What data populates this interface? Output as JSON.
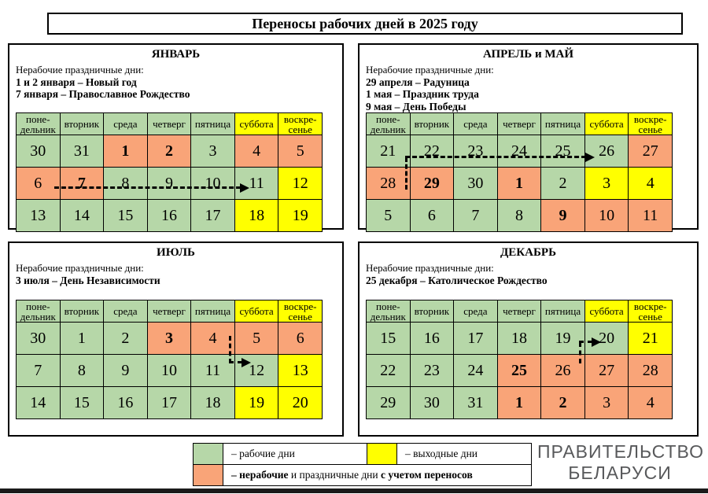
{
  "page_title": "Переносы рабочих дней в 2025 году",
  "colors": {
    "work": "#b6d7a8",
    "weekend": "#ffff00",
    "off": "#f9a478"
  },
  "weekdays": [
    {
      "label": "поне-\nдельник",
      "type": "work"
    },
    {
      "label": "вторник",
      "type": "work"
    },
    {
      "label": "среда",
      "type": "work"
    },
    {
      "label": "четверг",
      "type": "work"
    },
    {
      "label": "пятница",
      "type": "work"
    },
    {
      "label": "суббота",
      "type": "weekend"
    },
    {
      "label": "воскре-\nсенье",
      "type": "weekend"
    }
  ],
  "panels": [
    {
      "id": "january",
      "title": "ЯНВАРЬ",
      "holidays_label": "Нерабочие праздничные дни:",
      "holidays": [
        "1 и 2 января – Новый год",
        "7 января – Православное Рождество"
      ],
      "transfer": "6 → 11",
      "rows": [
        [
          {
            "d": "30",
            "t": "work"
          },
          {
            "d": "31",
            "t": "work"
          },
          {
            "d": "1",
            "t": "off",
            "b": true
          },
          {
            "d": "2",
            "t": "off",
            "b": true
          },
          {
            "d": "3",
            "t": "work"
          },
          {
            "d": "4",
            "t": "off"
          },
          {
            "d": "5",
            "t": "off"
          }
        ],
        [
          {
            "d": "6",
            "t": "off"
          },
          {
            "d": "7",
            "t": "off",
            "b": true
          },
          {
            "d": "8",
            "t": "work"
          },
          {
            "d": "9",
            "t": "work"
          },
          {
            "d": "10",
            "t": "work"
          },
          {
            "d": "11",
            "t": "work"
          },
          {
            "d": "12",
            "t": "weekend"
          }
        ],
        [
          {
            "d": "13",
            "t": "work"
          },
          {
            "d": "14",
            "t": "work"
          },
          {
            "d": "15",
            "t": "work"
          },
          {
            "d": "16",
            "t": "work"
          },
          {
            "d": "17",
            "t": "work"
          },
          {
            "d": "18",
            "t": "weekend"
          },
          {
            "d": "19",
            "t": "weekend"
          }
        ]
      ]
    },
    {
      "id": "april-may",
      "title": "АПРЕЛЬ и МАЙ",
      "holidays_label": "Нерабочие праздничные дни:",
      "holidays": [
        "29 апреля – Радуница",
        "1 мая – Праздник труда",
        "9 мая – День Победы"
      ],
      "transfer": "28 → 26",
      "rows": [
        [
          {
            "d": "21",
            "t": "work"
          },
          {
            "d": "22",
            "t": "work"
          },
          {
            "d": "23",
            "t": "work"
          },
          {
            "d": "24",
            "t": "work"
          },
          {
            "d": "25",
            "t": "work"
          },
          {
            "d": "26",
            "t": "work"
          },
          {
            "d": "27",
            "t": "off"
          }
        ],
        [
          {
            "d": "28",
            "t": "off"
          },
          {
            "d": "29",
            "t": "off",
            "b": true
          },
          {
            "d": "30",
            "t": "work"
          },
          {
            "d": "1",
            "t": "off",
            "b": true
          },
          {
            "d": "2",
            "t": "work"
          },
          {
            "d": "3",
            "t": "weekend"
          },
          {
            "d": "4",
            "t": "weekend"
          }
        ],
        [
          {
            "d": "5",
            "t": "work"
          },
          {
            "d": "6",
            "t": "work"
          },
          {
            "d": "7",
            "t": "work"
          },
          {
            "d": "8",
            "t": "work"
          },
          {
            "d": "9",
            "t": "off",
            "b": true
          },
          {
            "d": "10",
            "t": "off"
          },
          {
            "d": "11",
            "t": "off"
          }
        ]
      ]
    },
    {
      "id": "july",
      "title": "ИЮЛЬ",
      "holidays_label": "Нерабочие праздничные дни:",
      "holidays": [
        "3 июля – День Независимости"
      ],
      "transfer": "4 → 12",
      "rows": [
        [
          {
            "d": "30",
            "t": "work"
          },
          {
            "d": "1",
            "t": "work"
          },
          {
            "d": "2",
            "t": "work"
          },
          {
            "d": "3",
            "t": "off",
            "b": true
          },
          {
            "d": "4",
            "t": "off"
          },
          {
            "d": "5",
            "t": "off"
          },
          {
            "d": "6",
            "t": "off"
          }
        ],
        [
          {
            "d": "7",
            "t": "work"
          },
          {
            "d": "8",
            "t": "work"
          },
          {
            "d": "9",
            "t": "work"
          },
          {
            "d": "10",
            "t": "work"
          },
          {
            "d": "11",
            "t": "work"
          },
          {
            "d": "12",
            "t": "work"
          },
          {
            "d": "13",
            "t": "weekend"
          }
        ],
        [
          {
            "d": "14",
            "t": "work"
          },
          {
            "d": "15",
            "t": "work"
          },
          {
            "d": "16",
            "t": "work"
          },
          {
            "d": "17",
            "t": "work"
          },
          {
            "d": "18",
            "t": "work"
          },
          {
            "d": "19",
            "t": "weekend"
          },
          {
            "d": "20",
            "t": "weekend"
          }
        ]
      ]
    },
    {
      "id": "december",
      "title": "ДЕКАБРЬ",
      "holidays_label": "Нерабочие праздничные дни:",
      "holidays": [
        "25 декабря – Католическое Рождество"
      ],
      "transfer": "26 → 20",
      "rows": [
        [
          {
            "d": "15",
            "t": "work"
          },
          {
            "d": "16",
            "t": "work"
          },
          {
            "d": "17",
            "t": "work"
          },
          {
            "d": "18",
            "t": "work"
          },
          {
            "d": "19",
            "t": "work"
          },
          {
            "d": "20",
            "t": "work"
          },
          {
            "d": "21",
            "t": "weekend"
          }
        ],
        [
          {
            "d": "22",
            "t": "work"
          },
          {
            "d": "23",
            "t": "work"
          },
          {
            "d": "24",
            "t": "work"
          },
          {
            "d": "25",
            "t": "off",
            "b": true
          },
          {
            "d": "26",
            "t": "off"
          },
          {
            "d": "27",
            "t": "off"
          },
          {
            "d": "28",
            "t": "off"
          }
        ],
        [
          {
            "d": "29",
            "t": "work"
          },
          {
            "d": "30",
            "t": "work"
          },
          {
            "d": "31",
            "t": "work"
          },
          {
            "d": "1",
            "t": "off",
            "b": true
          },
          {
            "d": "2",
            "t": "off",
            "b": true
          },
          {
            "d": "3",
            "t": "off"
          },
          {
            "d": "4",
            "t": "off"
          }
        ]
      ]
    }
  ],
  "legend": {
    "working_label": "– рабочие дни",
    "weekend_label": "– выходные дни",
    "off_part1": "– нерабочие",
    "off_part2": " и праздничные дни ",
    "off_part3": "с учетом переносов"
  },
  "footer": {
    "org_line1": "ПРАВИТЕЛЬСТВО",
    "org_line2": "БЕЛАРУСИ"
  }
}
